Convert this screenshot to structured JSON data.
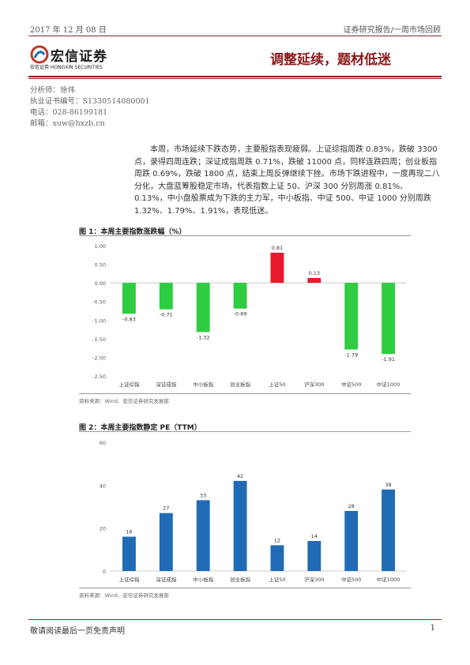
{
  "header": {
    "date": "2017 年 12 月 08 日",
    "report_type": "证券研究报告/一周市场回顾"
  },
  "logo": {
    "name_cn": "宏信证券",
    "name_en": "宏信证券  HONGXIN SECURITIES"
  },
  "doc_title": "调整延续，题材低迷",
  "analyst": {
    "name": "分析师：徐伟",
    "cert": "执业证书编号：S1330514080001",
    "phone": "电话：028-86199181",
    "email": "邮箱：xuw@hxzb.cn"
  },
  "summary": "本周，市场延续下跌态势，主要股指表现疲弱。上证综指周跌 0.83%，跌破 3300 点，录得四周连跌；深证成指周跌 0.71%，跌破 11000 点，同样连跌四周；创业板指周跌 0.69%，跌破 1800 点，结束上周反弹继续下挫。市场下跌进程中，一度再现二八分化，大盘蓝筹股稳定市场，代表指数上证 50、沪深 300 分别周涨 0.81%、0.13%，中小盘股票成为下跌的主力军，中小板指、中证 500、中证 1000 分别周跌 1.32%、1.79%、1.91%，表现低迷。",
  "chart1": {
    "title": "图 1：本周主要指数涨跌幅（%）",
    "source": "资料来源：Wind、宏信证券研究发展部"
  },
  "chart2": {
    "title": "图 2：本周主要指数静定 PE（TTM）",
    "source": "资料来源：Wind、宏信证券研究发展部"
  },
  "footer": {
    "disclaimer": "敬请阅读最后一页免责声明",
    "page": "1"
  },
  "chart_data": [
    {
      "type": "bar",
      "categories": [
        "上证综指",
        "深证成指",
        "中小板指",
        "创业板指",
        "上证50",
        "沪深300",
        "中证500",
        "中证1000"
      ],
      "values": [
        -0.83,
        -0.71,
        -1.32,
        -0.69,
        0.81,
        0.13,
        -1.79,
        -1.91
      ],
      "value_labels": [
        "-0.83",
        "-0.71",
        "-1.32",
        "-0.69",
        "0.81",
        "0.13",
        "-1.79",
        "-1.91"
      ],
      "ylim": [
        -2.5,
        1.0
      ],
      "yticks": [
        1.0,
        0.5,
        0.0,
        -0.5,
        -1.0,
        -1.5,
        -2.0,
        -2.5
      ],
      "ytick_labels": [
        "1.00",
        "0.50",
        "0.00",
        "-0.50",
        "-1.00",
        "-1.50",
        "-2.00",
        "-2.50"
      ],
      "colors": {
        "positive": "#e8192c",
        "negative": "#2ecc40"
      },
      "grid": false,
      "legend": "none"
    },
    {
      "type": "bar",
      "categories": [
        "上证综指",
        "深证成指",
        "中小板指",
        "创业板指",
        "上证50",
        "沪深300",
        "中证500",
        "中证1000"
      ],
      "values": [
        16,
        27,
        33,
        42,
        12,
        14,
        28,
        38
      ],
      "value_labels": [
        "16",
        "27",
        "33",
        "42",
        "12",
        "14",
        "28",
        "38"
      ],
      "ylim": [
        0,
        60
      ],
      "yticks": [
        60,
        40,
        20,
        0
      ],
      "ytick_labels": [
        "60",
        "40",
        "20",
        "0"
      ],
      "colors": {
        "bar": "#1f6bb5"
      },
      "grid": false,
      "legend": "none"
    }
  ]
}
